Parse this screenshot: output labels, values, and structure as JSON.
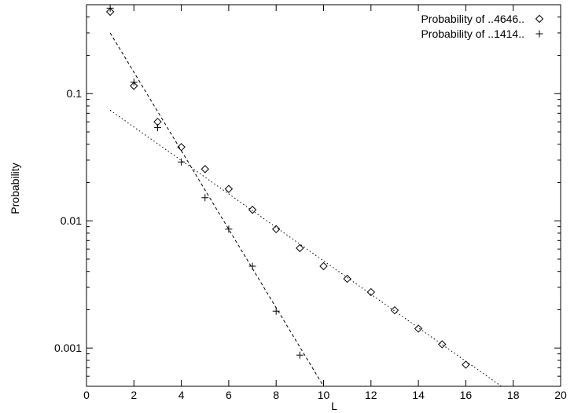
{
  "chart_data": {
    "type": "scatter",
    "title": "",
    "xlabel": "L",
    "ylabel": "Probability",
    "xlim": [
      0,
      20
    ],
    "ylim": [
      0.0005,
      0.5
    ],
    "yscale": "log",
    "grid": false,
    "legend_position": "top-right",
    "x_ticks": [
      0,
      2,
      4,
      6,
      8,
      10,
      12,
      14,
      16,
      18,
      20
    ],
    "y_ticks": [
      {
        "value": 0.001,
        "label": "0.001"
      },
      {
        "value": 0.01,
        "label": "0.01"
      },
      {
        "value": 0.1,
        "label": "0.1"
      }
    ],
    "series": [
      {
        "name": "Probability of ..4646..",
        "marker": "diamond",
        "x": [
          1,
          2,
          3,
          4,
          5,
          6,
          7,
          8,
          9,
          10,
          11,
          12,
          13,
          14,
          15,
          16
        ],
        "y": [
          0.44,
          0.115,
          0.06,
          0.038,
          0.0255,
          0.0178,
          0.0122,
          0.0086,
          0.0061,
          0.0044,
          0.0035,
          0.00275,
          0.00198,
          0.00142,
          0.00107,
          0.00074
        ]
      },
      {
        "name": "Probability of ..1414..",
        "marker": "plus",
        "x": [
          1,
          2,
          3,
          4,
          5,
          6,
          7,
          8,
          9
        ],
        "y": [
          0.47,
          0.123,
          0.054,
          0.029,
          0.0152,
          0.0086,
          0.0044,
          0.00195,
          0.00088
        ]
      }
    ],
    "fit_lines": [
      {
        "style": "dotted",
        "x": [
          1,
          17.5
        ],
        "y": [
          0.074,
          0.0005
        ]
      },
      {
        "style": "dashed",
        "x": [
          1,
          10
        ],
        "y": [
          0.3,
          0.0005
        ]
      }
    ]
  }
}
